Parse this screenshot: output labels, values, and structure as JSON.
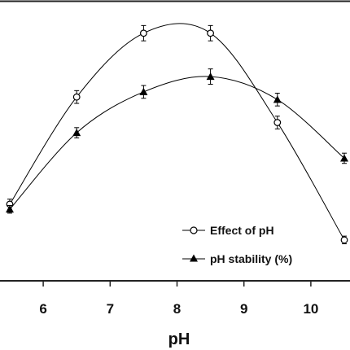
{
  "chart_data": {
    "type": "line",
    "xlabel": "pH",
    "ylabel": "",
    "x_ticks": [
      "6",
      "7",
      "8",
      "9",
      "10"
    ],
    "xlim": [
      5.5,
      10.5
    ],
    "ylim": [
      0,
      110
    ],
    "grid": false,
    "legend_position": "bottom-right",
    "series": [
      {
        "name": "Effect of pH",
        "marker": "open-circle",
        "color": "#000000",
        "x": [
          5.5,
          6.5,
          7.5,
          8.5,
          9.5,
          10.5
        ],
        "y": [
          30,
          72,
          97,
          97,
          62,
          16
        ],
        "error": [
          2,
          2.5,
          3,
          3,
          2.5,
          1.5
        ]
      },
      {
        "name": "pH stability (%)",
        "marker": "filled-triangle",
        "color": "#000000",
        "x": [
          5.5,
          6.5,
          7.5,
          8.5,
          9.5,
          10.5
        ],
        "y": [
          28,
          58,
          74,
          80,
          71,
          48
        ],
        "error": [
          1.5,
          2,
          2.5,
          3,
          2.5,
          2
        ]
      }
    ]
  }
}
